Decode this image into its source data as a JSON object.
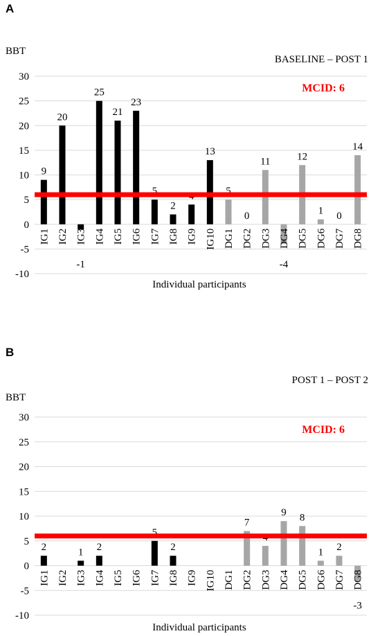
{
  "chart_data": [
    {
      "panel": "A",
      "type": "bar",
      "title": "BASELINE – POST 1",
      "ylabel": "BBT",
      "xlabel": "Individual participants",
      "ylim": [
        -10,
        30
      ],
      "yticks": [
        -10,
        -5,
        0,
        5,
        10,
        15,
        20,
        25,
        30
      ],
      "categories": [
        "IG1",
        "IG2",
        "IG3",
        "IG4",
        "IG5",
        "IG6",
        "IG7",
        "IG8",
        "IG9",
        "IG10",
        "DG1",
        "DG2",
        "DG3",
        "DG4",
        "DG5",
        "DG6",
        "DG7",
        "DG8"
      ],
      "values": [
        9,
        20,
        -1,
        25,
        21,
        23,
        5,
        2,
        4,
        13,
        5,
        0,
        11,
        -4,
        12,
        1,
        0,
        14
      ],
      "threshold": {
        "label": "MCID: 6",
        "value": 6,
        "color": "#ff0000"
      },
      "colors": {
        "IG": "#000000",
        "DG": "#a6a6a6"
      },
      "grid": true
    },
    {
      "panel": "B",
      "type": "bar",
      "title": "POST 1 – POST 2",
      "ylabel": "BBT",
      "xlabel": "Individual participants",
      "ylim": [
        -10,
        30
      ],
      "yticks": [
        -10,
        -5,
        0,
        5,
        10,
        15,
        20,
        25,
        30
      ],
      "categories": [
        "IG1",
        "IG2",
        "IG3",
        "IG4",
        "IG5",
        "IG6",
        "IG7",
        "IG8",
        "IG9",
        "IG10",
        "DG1",
        "DG2",
        "DG3",
        "DG4",
        "DG5",
        "DG6",
        "DG7",
        "DG8"
      ],
      "values": [
        2,
        null,
        1,
        2,
        null,
        null,
        5,
        2,
        null,
        null,
        null,
        7,
        4,
        9,
        8,
        1,
        2,
        -3
      ],
      "threshold": {
        "label": "MCID: 6",
        "value": 6,
        "color": "#ff0000"
      },
      "colors": {
        "IG": "#000000",
        "DG": "#a6a6a6"
      },
      "grid": true
    }
  ]
}
